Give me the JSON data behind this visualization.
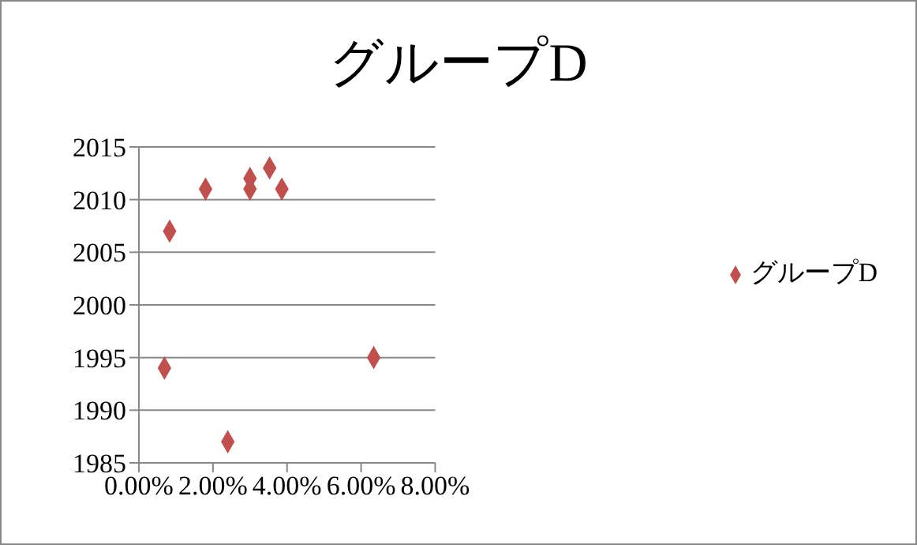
{
  "chart_data": {
    "type": "scatter",
    "title": "グループD",
    "series": [
      {
        "name": "グループD",
        "color": "#c0504d",
        "x": [
          0.0069,
          0.0083,
          0.018,
          0.024,
          0.03,
          0.03,
          0.0353,
          0.0386,
          0.0634
        ],
        "values": [
          1994,
          2007,
          2011,
          1987,
          2011,
          2012,
          2013,
          2011,
          1995
        ]
      }
    ],
    "xlim": [
      0,
      0.08
    ],
    "xticks": [
      {
        "value": 0,
        "label": "0.00%"
      },
      {
        "value": 0.02,
        "label": "2.00%"
      },
      {
        "value": 0.04,
        "label": "4.00%"
      },
      {
        "value": 0.06,
        "label": "6.00%"
      },
      {
        "value": 0.08,
        "label": "8.00%"
      }
    ],
    "ylim": [
      1985,
      2015
    ],
    "yticks": [
      1985,
      1990,
      1995,
      2000,
      2005,
      2010,
      2015
    ],
    "grid": "y",
    "legend": "right",
    "marker": "diamond"
  }
}
